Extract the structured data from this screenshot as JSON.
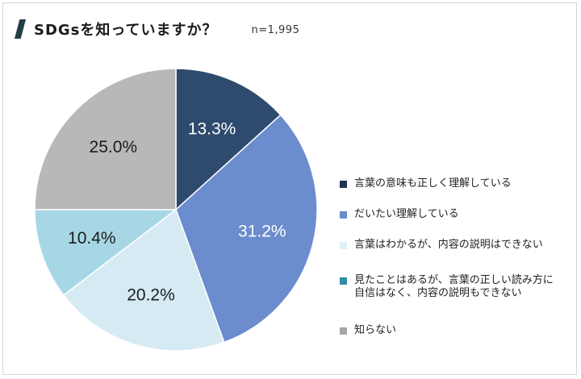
{
  "header": {
    "title": "SDGsを知っていますか？",
    "sample_size": "n=1,995"
  },
  "colors": {
    "title_mark": "#233c48",
    "series": [
      "#2e4b6e",
      "#6b8ccd",
      "#d6eaf3",
      "#a7d7e5",
      "#b8b8b8"
    ]
  },
  "chart_data": {
    "type": "pie",
    "start_angle": "12 o'clock",
    "direction": "clockwise",
    "categories": [
      "言葉の意味も正しく理解している",
      "だいたい理解している",
      "言葉はわかるが、内容の説明はできない",
      "見たことはあるが、言葉の正しい読み方に自信はなく、内容の説明もできない",
      "知らない"
    ],
    "values": [
      13.3,
      31.2,
      20.2,
      10.4,
      25.0
    ],
    "data_labels": [
      "13.3%",
      "31.2%",
      "20.2%",
      "10.4%",
      "25.0%"
    ],
    "legend_placement": "right",
    "legend_swatch_colors": [
      "#1f3550",
      "#6b8ccd",
      "#dff0f7",
      "#2f8ea6",
      "#a6a6a6"
    ],
    "label_colors": [
      "#ffffff",
      "#ffffff",
      "#1c1c1c",
      "#1c1c1c",
      "#1c1c1c"
    ]
  }
}
